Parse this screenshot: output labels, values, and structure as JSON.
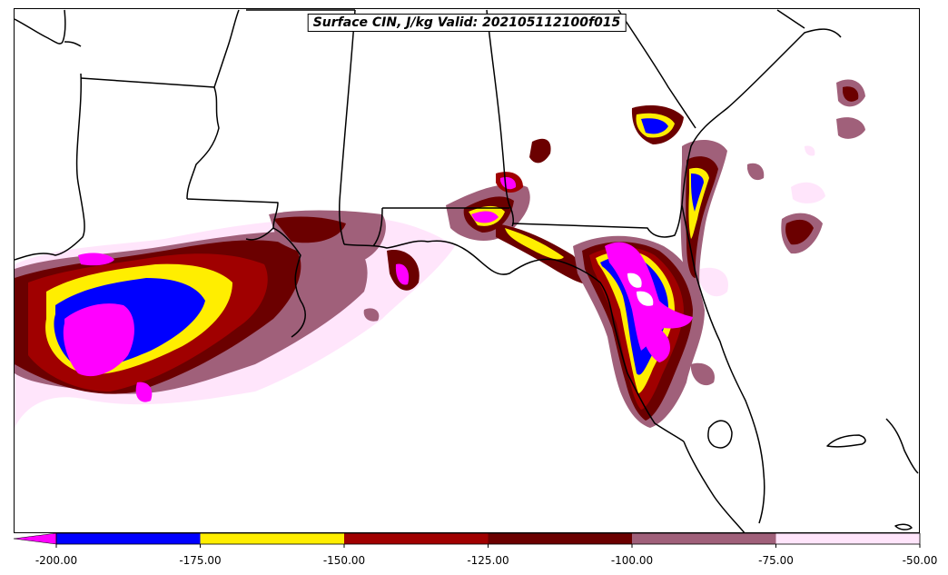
{
  "title": "Surface CIN, J/kg Valid: 202105112100f015",
  "colorbar": {
    "extend": "min",
    "ticks": [
      "-200.00",
      "-175.00",
      "-150.00",
      "-125.00",
      "-100.00",
      "-75.00",
      "-50.00"
    ],
    "bins": [
      {
        "from": -200,
        "to": -175,
        "color": "#0000ff"
      },
      {
        "from": -175,
        "to": -150,
        "color": "#ffee00"
      },
      {
        "from": -150,
        "to": -125,
        "color": "#a00000"
      },
      {
        "from": -125,
        "to": -100,
        "color": "#6b0000"
      },
      {
        "from": -100,
        "to": -75,
        "color": "#a0607a"
      },
      {
        "from": -75,
        "to": -50,
        "color": "#ffe5fb"
      }
    ],
    "under_color": "#ff00ff"
  }
}
